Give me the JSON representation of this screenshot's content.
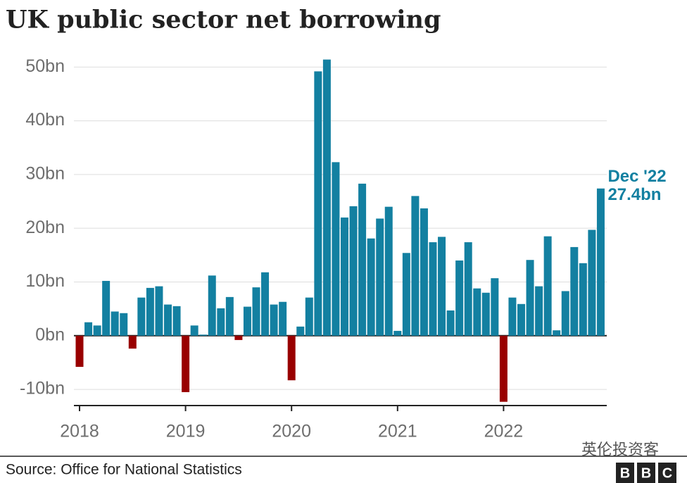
{
  "chart_data": {
    "type": "bar",
    "title": "UK public sector net borrowing",
    "source": "Source: Office for National Statistics",
    "annotation": "Dec '22",
    "watermark": "英伦投资客",
    "logo": [
      "B",
      "B",
      "C"
    ],
    "categories": [
      "2018",
      null,
      null,
      null,
      null,
      null,
      null,
      null,
      null,
      null,
      null,
      null,
      "2019",
      null,
      null,
      null,
      null,
      null,
      null,
      null,
      null,
      null,
      null,
      null,
      "2020",
      null,
      null,
      null,
      null,
      null,
      null,
      null,
      null,
      null,
      null,
      null,
      "2021",
      null,
      null,
      null,
      null,
      null,
      null,
      null,
      null,
      null,
      null,
      null,
      "2022",
      null,
      null,
      null,
      null,
      null,
      null,
      null,
      null,
      null,
      null,
      null
    ],
    "values": [
      -5.8,
      2.5,
      1.9,
      10.2,
      4.5,
      4.2,
      -2.4,
      7.1,
      8.9,
      9.2,
      5.8,
      5.5,
      -10.5,
      1.9,
      0.2,
      11.2,
      5.1,
      7.2,
      -0.8,
      5.4,
      9.0,
      11.8,
      5.8,
      6.3,
      -8.3,
      1.7,
      7.1,
      49.2,
      51.4,
      32.3,
      22.0,
      24.1,
      28.3,
      18.1,
      21.8,
      24.0,
      0.9,
      15.4,
      26.0,
      23.7,
      17.4,
      18.4,
      4.7,
      14.0,
      17.4,
      8.8,
      8.0,
      10.7,
      -12.3,
      7.1,
      5.9,
      14.1,
      9.2,
      18.5,
      1.0,
      8.3,
      16.5,
      13.5,
      19.7,
      27.4
    ],
    "value_labels": [
      null,
      null,
      null,
      null,
      null,
      null,
      null,
      null,
      null,
      null,
      null,
      null,
      null,
      null,
      null,
      null,
      null,
      null,
      null,
      null,
      null,
      null,
      null,
      null,
      null,
      null,
      null,
      null,
      null,
      null,
      null,
      null,
      null,
      null,
      null,
      null,
      null,
      null,
      null,
      null,
      null,
      null,
      null,
      null,
      null,
      null,
      null,
      null,
      null,
      null,
      null,
      null,
      null,
      null,
      null,
      null,
      null,
      null,
      null,
      "27.4bn"
    ],
    "colors": {
      "positive": "#1380a1",
      "negative": "#990000"
    },
    "ylim": [
      -13,
      52
    ],
    "yticks": [
      {
        "value": -10,
        "label": "-10bn"
      },
      {
        "value": 0,
        "label": "0bn"
      },
      {
        "value": 10,
        "label": "10bn"
      },
      {
        "value": 20,
        "label": "20bn"
      },
      {
        "value": 30,
        "label": "30bn"
      },
      {
        "value": 40,
        "label": "40bn"
      },
      {
        "value": 50,
        "label": "50bn"
      }
    ],
    "grid": true
  }
}
